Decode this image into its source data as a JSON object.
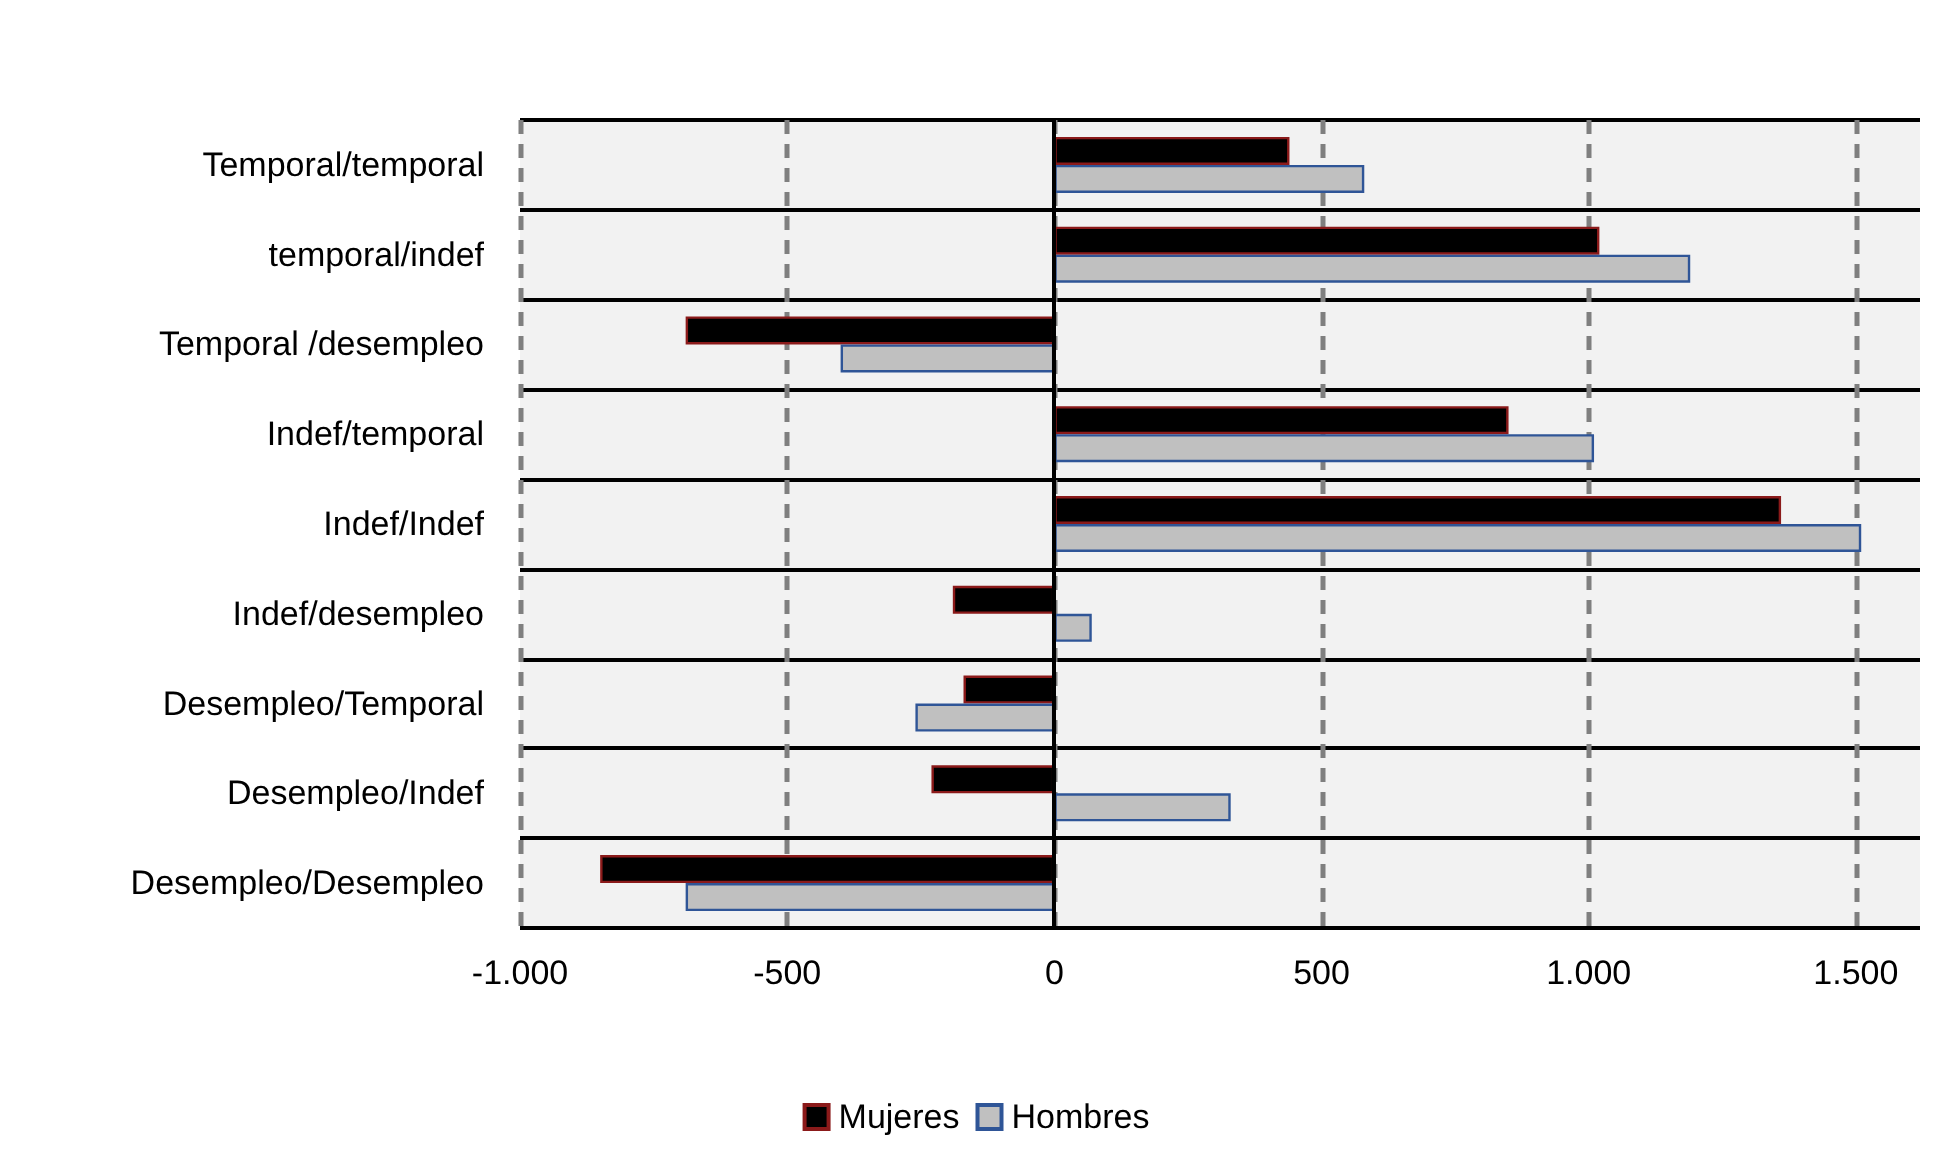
{
  "chart_data": {
    "type": "bar",
    "orientation": "horizontal",
    "categories": [
      "Temporal/temporal",
      "temporal/indef",
      "Temporal /desempleo",
      "Indef/temporal",
      "Indef/Indef",
      "Indef/desempleo",
      "Desempleo/Temporal",
      "Desempleo/Indef",
      "Desempleo/Desempleo"
    ],
    "series": [
      {
        "name": "Mujeres",
        "color": "#000000",
        "values": [
          440,
          1020,
          -690,
          850,
          1360,
          -190,
          -170,
          -230,
          -850
        ]
      },
      {
        "name": "Hombres",
        "color": "#c0c0c0",
        "values": [
          580,
          1190,
          -400,
          1010,
          1510,
          70,
          -260,
          330,
          -690
        ]
      }
    ],
    "xlim": [
      -1000,
      1620
    ],
    "xticks": [
      {
        "value": -1000,
        "label": "-1.000"
      },
      {
        "value": -500,
        "label": "-500"
      },
      0,
      500,
      {
        "value": 1000,
        "label": "1.000"
      },
      {
        "value": 1500,
        "label": "1.500"
      }
    ],
    "grid": true,
    "legend": "bottom"
  }
}
